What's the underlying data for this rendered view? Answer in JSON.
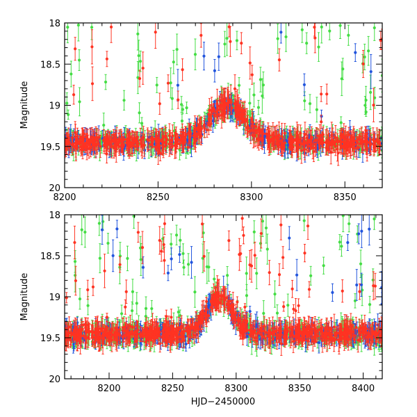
{
  "chart_data": [
    {
      "type": "scatter",
      "title": "",
      "xlabel": "",
      "ylabel": "Magnitude",
      "xlim": [
        8200,
        8370
      ],
      "ylim": [
        20,
        18
      ],
      "y_inverted": true,
      "xticks": [
        8200,
        8250,
        8300,
        8350
      ],
      "xtick_labels": [
        "8200",
        "8250",
        "8300",
        "8350"
      ],
      "yticks": [
        18,
        18.5,
        19,
        19.5,
        20
      ],
      "ytick_labels": [
        "18",
        "18.5",
        "19",
        "19.5",
        "20"
      ],
      "grid": false,
      "series": [
        {
          "color": "#44dd44",
          "error_bars": true
        },
        {
          "color": "#2255dd",
          "error_bars": true
        },
        {
          "color": "#ff3322",
          "error_bars": true
        }
      ],
      "pattern": {
        "baseline_mag": 19.45,
        "brightening_peak_x": 8287,
        "brightening_peak_mag": 19.0,
        "brightening_half_width_days": 14
      }
    },
    {
      "type": "scatter",
      "title": "",
      "xlabel": "HJD−2450000",
      "ylabel": "Magnitude",
      "xlim": [
        8165,
        8415
      ],
      "ylim": [
        20,
        18
      ],
      "y_inverted": true,
      "xticks": [
        8200,
        8250,
        8300,
        8350,
        8400
      ],
      "xtick_labels": [
        "8200",
        "8250",
        "8300",
        "8350",
        "8400"
      ],
      "yticks": [
        18,
        18.5,
        19,
        19.5,
        20
      ],
      "ytick_labels": [
        "18",
        "18.5",
        "19",
        "19.5",
        "20"
      ],
      "grid": false,
      "series": [
        {
          "color": "#44dd44",
          "error_bars": true
        },
        {
          "color": "#2255dd",
          "error_bars": true
        },
        {
          "color": "#ff3322",
          "error_bars": true
        }
      ],
      "pattern": {
        "baseline_mag": 19.45,
        "brightening_peak_x": 8287,
        "brightening_peak_mag": 19.0,
        "brightening_half_width_days": 14
      }
    }
  ]
}
